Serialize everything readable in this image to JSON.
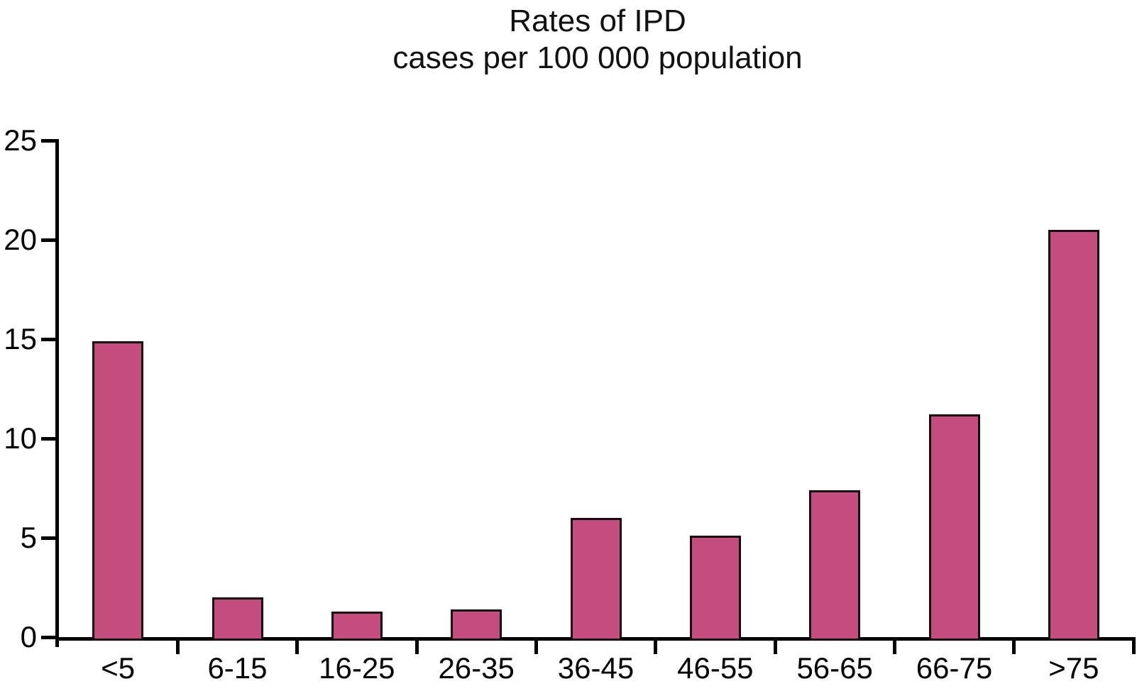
{
  "title": {
    "line1": "Rates of IPD",
    "line2": "cases per 100 000 population"
  },
  "chart_data": {
    "type": "bar",
    "title": "Rates of IPD cases per 100 000 population",
    "categories": [
      "<5",
      "6-15",
      "16-25",
      "26-35",
      "36-45",
      "46-55",
      "56-65",
      "66-75",
      ">75"
    ],
    "values": [
      14.9,
      2.0,
      1.3,
      1.4,
      6.0,
      5.1,
      7.4,
      11.2,
      20.5
    ],
    "xlabel": "",
    "ylabel": "",
    "ylim": [
      0,
      25
    ],
    "yticks": [
      0,
      5,
      10,
      15,
      20,
      25
    ],
    "grid": false,
    "legend_position": "none",
    "colors": {
      "bar_fill": "#c44d7e",
      "bar_border": "#150a10",
      "axis": "#000000",
      "text": "#000000"
    }
  }
}
